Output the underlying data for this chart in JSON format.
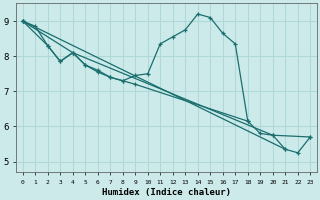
{
  "xlabel": "Humidex (Indice chaleur)",
  "background_color": "#cdeaea",
  "grid_color": "#b0d8d8",
  "line_color": "#1a6e6e",
  "xlim": [
    -0.5,
    23.5
  ],
  "ylim": [
    4.7,
    9.5
  ],
  "xticks": [
    0,
    1,
    2,
    3,
    4,
    5,
    6,
    7,
    8,
    9,
    10,
    11,
    12,
    13,
    14,
    15,
    16,
    17,
    18,
    19,
    20,
    21,
    22,
    23
  ],
  "yticks": [
    5,
    6,
    7,
    8,
    9
  ],
  "main_x": [
    0,
    1,
    2,
    3,
    4,
    5,
    6,
    7,
    8,
    9,
    10,
    11,
    12,
    13,
    14,
    15,
    16,
    17,
    18,
    19,
    20,
    21,
    22,
    23
  ],
  "main_y": [
    9.0,
    8.85,
    8.3,
    7.85,
    8.1,
    7.75,
    7.6,
    7.4,
    7.3,
    7.45,
    7.5,
    8.35,
    8.55,
    8.75,
    9.2,
    9.1,
    8.65,
    8.35,
    6.15,
    5.8,
    5.75,
    5.35,
    5.25,
    5.7
  ],
  "line2_x": [
    0,
    2,
    3,
    4,
    5,
    6,
    7,
    8,
    9,
    18
  ],
  "line2_y": [
    9.0,
    8.3,
    7.85,
    8.1,
    7.75,
    7.55,
    7.4,
    7.3,
    7.2,
    6.15
  ],
  "line3_x": [
    0,
    4,
    20,
    23
  ],
  "line3_y": [
    9.0,
    8.1,
    5.75,
    5.7
  ],
  "line4_x": [
    0,
    21
  ],
  "line4_y": [
    9.0,
    5.35
  ]
}
